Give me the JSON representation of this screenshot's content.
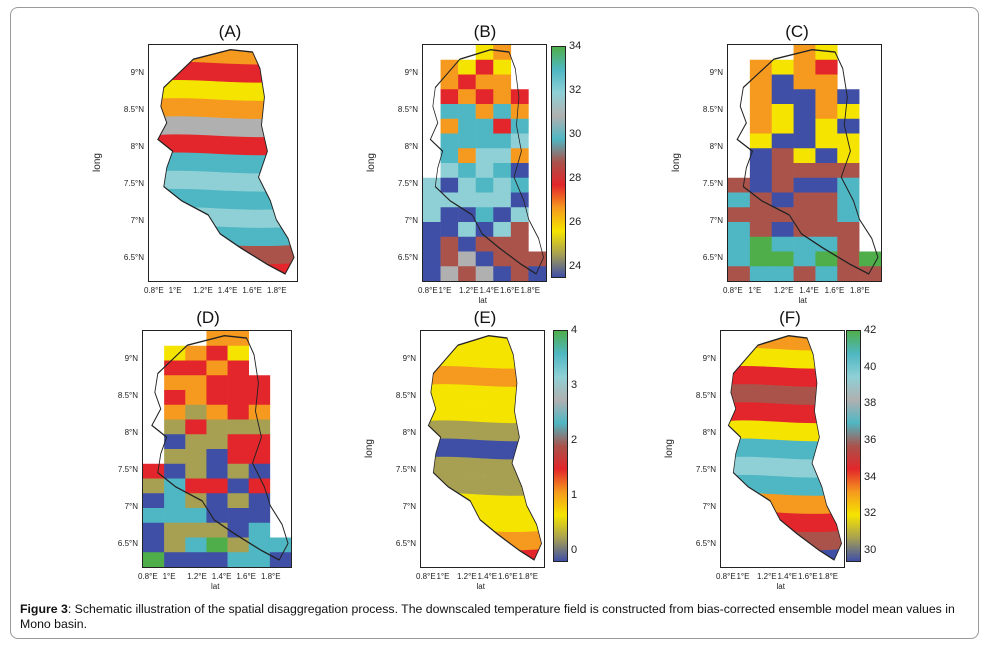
{
  "panels": [
    {
      "id": "A",
      "title": "(A)",
      "ylabel": "long",
      "xlabel": "",
      "yticks": [
        "9°N",
        "8.5°N",
        "8°N",
        "7.5°N",
        "7°N",
        "6.5°N"
      ],
      "xticks": [
        "0.8°E",
        "1°E",
        "1.2°E",
        "1.4°E",
        "1.6°E",
        "1.8°E"
      ],
      "colorbar": null
    },
    {
      "id": "B",
      "title": "(B)",
      "ylabel": "long",
      "xlabel": "lat",
      "yticks": [
        "9°N",
        "8.5°N",
        "8°N",
        "7.5°N",
        "7°N",
        "6.5°N"
      ],
      "xticks": [
        "0.8°E",
        "1°E",
        "1.2°E",
        "1.4°E",
        "1.6°E",
        "1.8°E"
      ],
      "colorbar": [
        "34",
        "32",
        "30",
        "28",
        "26",
        "24"
      ]
    },
    {
      "id": "C",
      "title": "(C)",
      "ylabel": "long",
      "xlabel": "lat",
      "yticks": [
        "9°N",
        "8.5°N",
        "8°N",
        "7.5°N",
        "7°N",
        "6.5°N"
      ],
      "xticks": [
        "0.8°E",
        "1°E",
        "1.2°E",
        "1.4°E",
        "1.6°E",
        "1.8°E"
      ],
      "colorbar": null
    },
    {
      "id": "D",
      "title": "(D)",
      "ylabel": "",
      "xlabel": "lat",
      "yticks": [
        "9°N",
        "8.5°N",
        "8°N",
        "7.5°N",
        "7°N",
        "6.5°N"
      ],
      "xticks": [
        "0.8°E",
        "1°E",
        "1.2°E",
        "1.4°E",
        "1.6°E",
        "1.8°E"
      ],
      "colorbar": null
    },
    {
      "id": "E",
      "title": "(E)",
      "ylabel": "long",
      "xlabel": "lat",
      "yticks": [
        "9°N",
        "8.5°N",
        "8°N",
        "7.5°N",
        "7°N",
        "6.5°N"
      ],
      "xticks": [
        "0.8°E",
        "1°E",
        "1.2°E",
        "1.4°E",
        "1.6°E",
        "1.8°E"
      ],
      "colorbar": [
        "4",
        "3",
        "2",
        "1",
        "0"
      ]
    },
    {
      "id": "F",
      "title": "(F)",
      "ylabel": "long",
      "xlabel": "lat",
      "yticks": [
        "9°N",
        "8.5°N",
        "8°N",
        "7.5°N",
        "7°N",
        "6.5°N"
      ],
      "xticks": [
        "0.8°E",
        "1°E",
        "1.2°E",
        "1.4°E",
        "1.6°E",
        "1.8°E"
      ],
      "colorbar": [
        "42",
        "40",
        "38",
        "36",
        "34",
        "32",
        "30"
      ]
    }
  ],
  "colors": {
    "blue": "#3f4fa6",
    "teal": "#4fb7c3",
    "lightblue": "#8fd0d6",
    "green": "#4fae4a",
    "olive": "#a7a052",
    "yellow": "#f5e400",
    "orange": "#f59a1e",
    "red": "#e3262b",
    "brown": "#a9534b",
    "gray": "#b0b0b0",
    "darkred": "#c0212a"
  },
  "caption": {
    "label": "Figure 3",
    "text": ": Schematic illustration of the spatial disaggregation process. The downscaled temperature field is constructed from bias-corrected ensemble model mean values in Mono basin."
  }
}
